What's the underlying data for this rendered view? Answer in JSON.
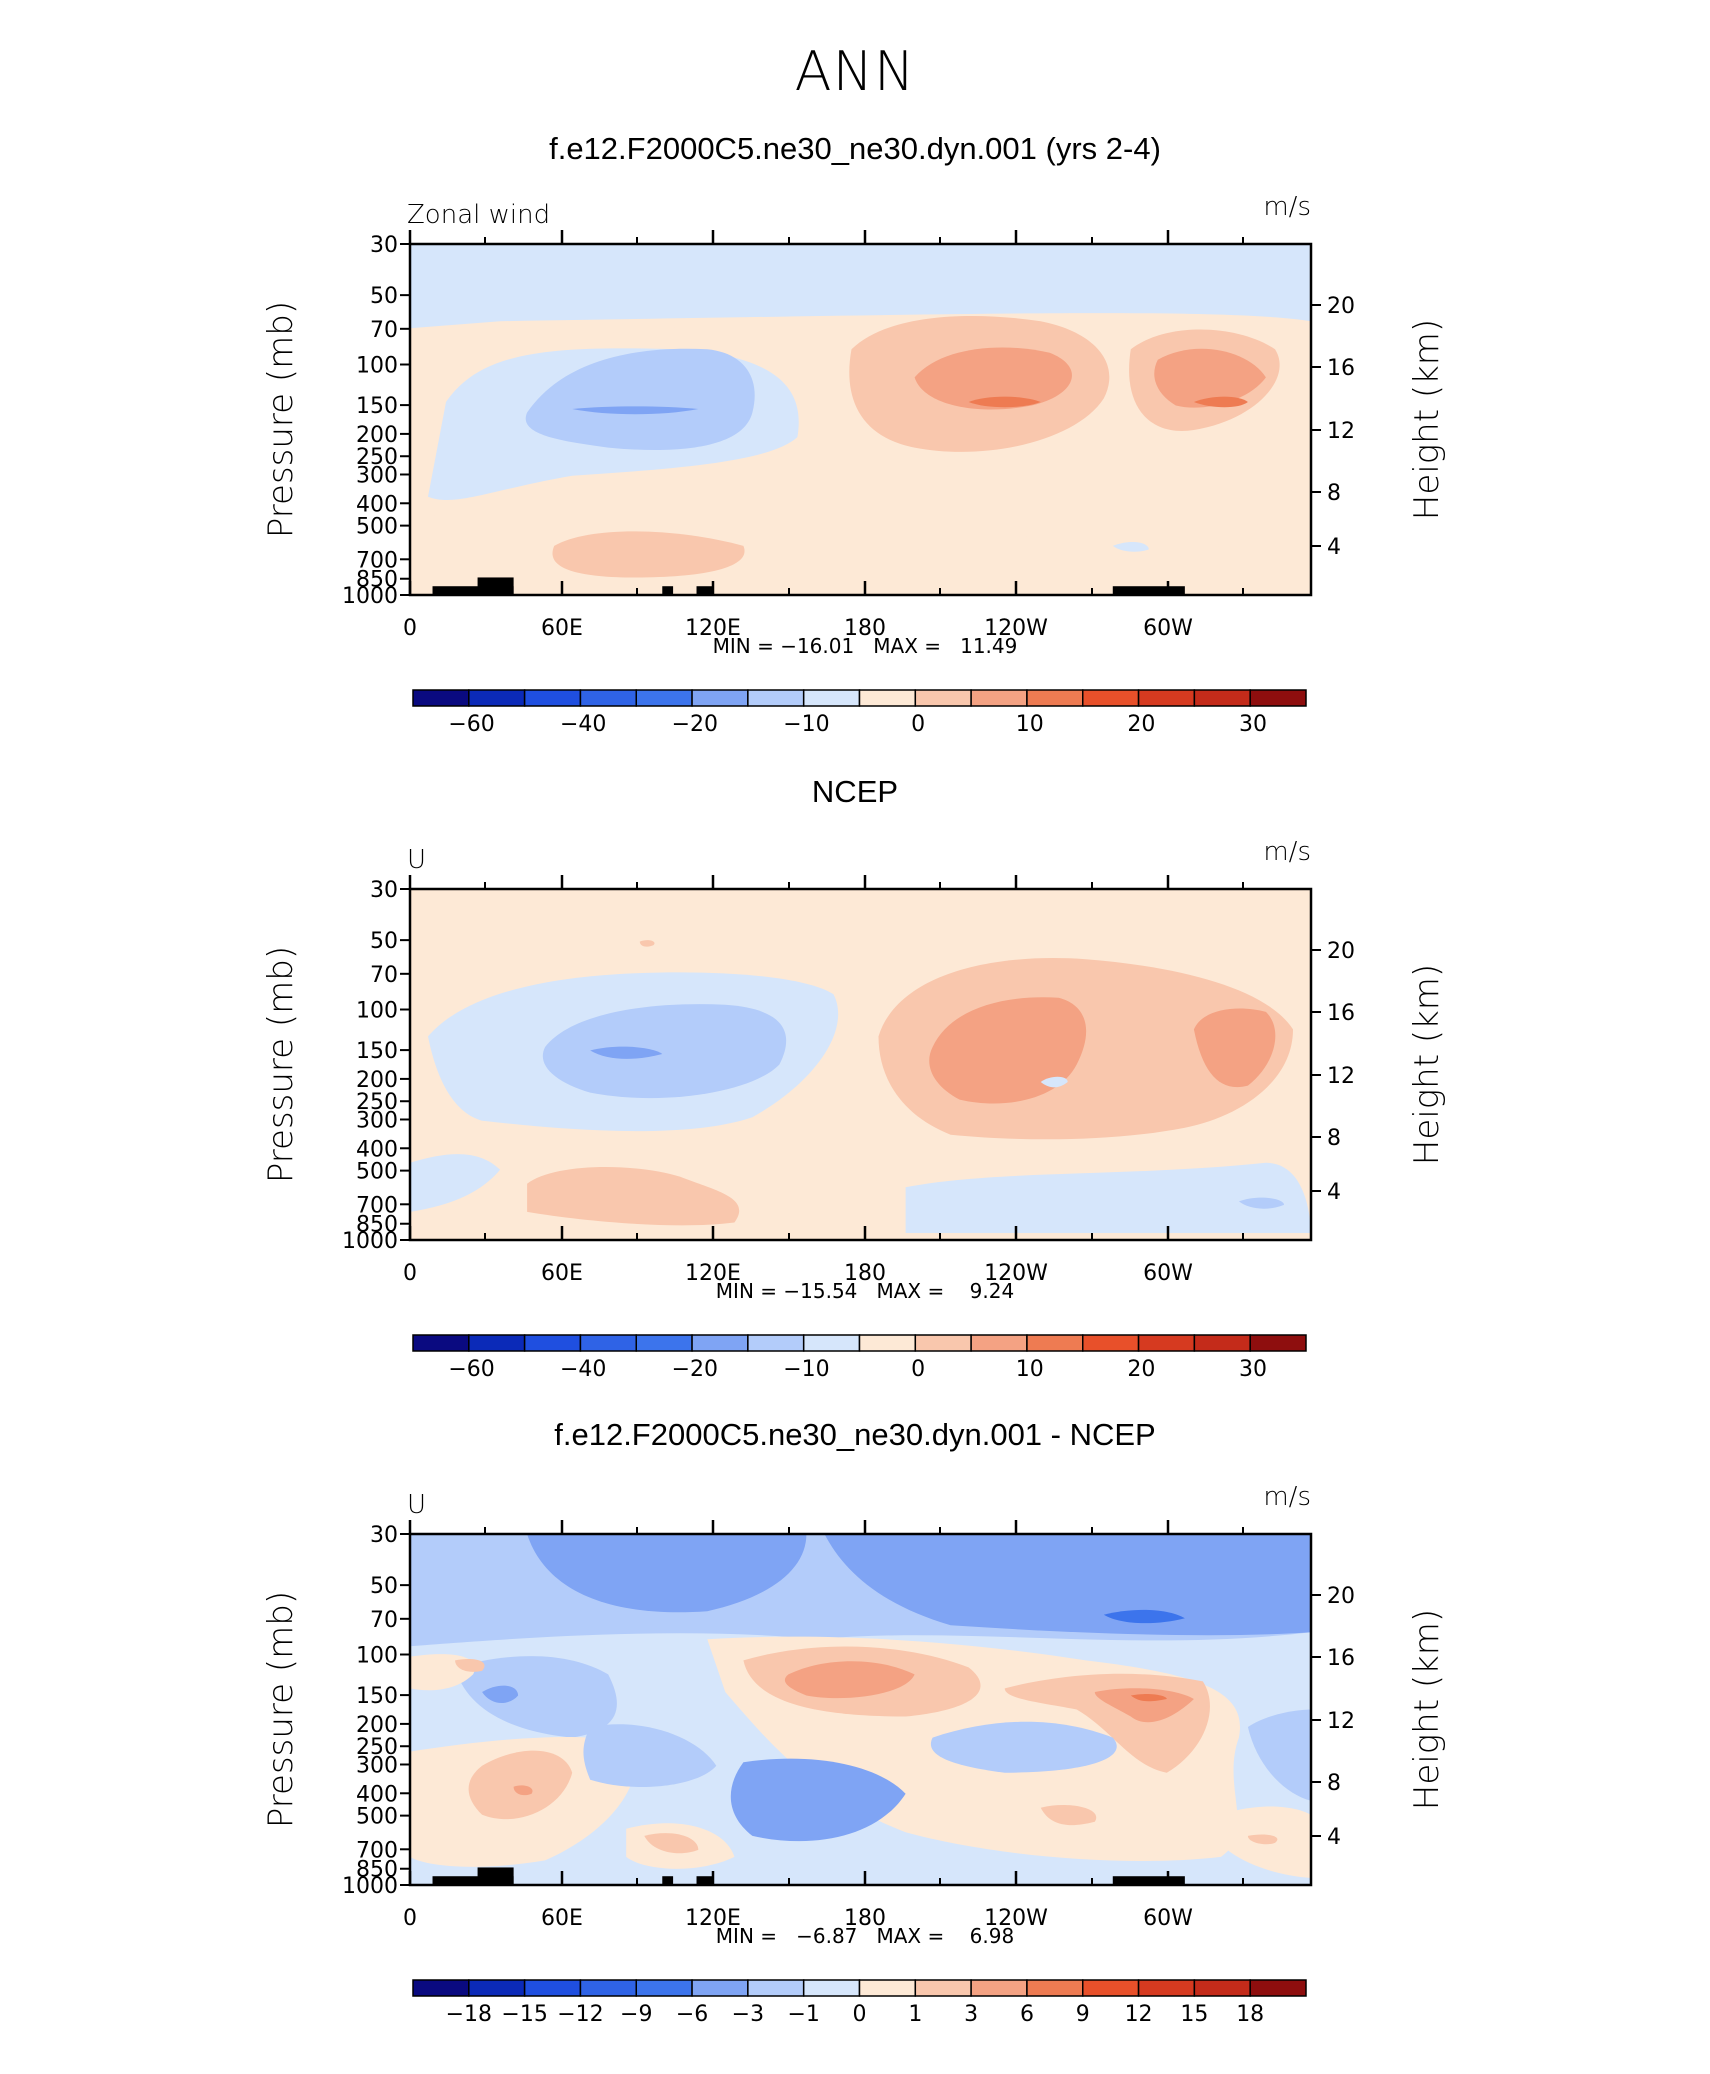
{
  "page_title": "ANN",
  "panels": [
    {
      "title": "f.e12.F2000C5.ne30_ne30.dyn.001 (yrs 2-4)",
      "left_label": "Zonal wind",
      "units": "m/s",
      "min_max": "MIN = −16.01   MAX =   11.49",
      "colorbar_labels": [
        "−60",
        "−40",
        "−20",
        "−10",
        "0",
        "10",
        "20",
        "30"
      ]
    },
    {
      "title": "NCEP",
      "left_label": "U",
      "units": "m/s",
      "min_max": "MIN = −15.54   MAX =    9.24",
      "colorbar_labels": [
        "−60",
        "−40",
        "−20",
        "−10",
        "0",
        "10",
        "20",
        "30"
      ]
    },
    {
      "title": "f.e12.F2000C5.ne30_ne30.dyn.001 - NCEP",
      "left_label": "U",
      "units": "m/s",
      "min_max": "MIN =   −6.87   MAX =    6.98",
      "colorbar_labels": [
        "−18",
        "−15",
        "−12",
        "−9",
        "−6",
        "−3",
        "−1",
        "0",
        "1",
        "3",
        "6",
        "9",
        "12",
        "15",
        "18"
      ]
    }
  ],
  "axes": {
    "y_left_label": "Pressure  (mb)",
    "y_right_label": "Height  (km)",
    "pressure_ticks": [
      "30",
      "50",
      "70",
      "100",
      "150",
      "200",
      "250",
      "300",
      "400",
      "500",
      "700",
      "850",
      "1000"
    ],
    "height_ticks": [
      "20",
      "16",
      "12",
      "8",
      "4"
    ],
    "lon_ticks": [
      "0",
      "60E",
      "120E",
      "180",
      "120W",
      "60W"
    ]
  },
  "colors": {
    "palette": [
      "#0a0a80",
      "#0b2ab8",
      "#1f4fe0",
      "#3c74ec",
      "#7fa4f4",
      "#b3ccfa",
      "#d6e6fb",
      "#fde9d6",
      "#f9c7ad",
      "#f4a283",
      "#ee7b52",
      "#e8502a",
      "#c42b1a",
      "#8e0e0e"
    ]
  },
  "chart_data": [
    {
      "type": "heatmap",
      "title": "f.e12.F2000C5.ne30_ne30.dyn.001 (yrs 2-4)",
      "field": "Zonal wind",
      "units": "m/s",
      "x_axis": "longitude",
      "x_ticks": [
        "0",
        "60E",
        "120E",
        "180",
        "120W",
        "60W"
      ],
      "y_axis": "Pressure (mb)",
      "ylim": [
        1000,
        30
      ],
      "y_scale": "log",
      "min": -16.01,
      "max": 11.49,
      "contour_levels": [
        -60,
        -50,
        -40,
        -30,
        -20,
        -15,
        -10,
        -5,
        0,
        5,
        10,
        15,
        20,
        25,
        30
      ],
      "features": [
        {
          "region": "easterly core near 90E–120E, 150 mb",
          "value_range": [
            -15,
            -10
          ]
        },
        {
          "region": "westerly core near 110W, 150 mb",
          "value_range": [
            10,
            15
          ]
        },
        {
          "region": "westerly core near 30W, 150 mb",
          "value_range": [
            10,
            15
          ]
        }
      ]
    },
    {
      "type": "heatmap",
      "title": "NCEP",
      "field": "U",
      "units": "m/s",
      "x_axis": "longitude",
      "x_ticks": [
        "0",
        "60E",
        "120E",
        "180",
        "120W",
        "60W"
      ],
      "y_axis": "Pressure (mb)",
      "ylim": [
        1000,
        30
      ],
      "y_scale": "log",
      "min": -15.54,
      "max": 9.24,
      "contour_levels": [
        -60,
        -50,
        -40,
        -30,
        -20,
        -15,
        -10,
        -5,
        0,
        5,
        10,
        15,
        20,
        25,
        30
      ]
    },
    {
      "type": "heatmap",
      "title": "f.e12.F2000C5.ne30_ne30.dyn.001 - NCEP",
      "field": "U",
      "units": "m/s",
      "x_axis": "longitude",
      "x_ticks": [
        "0",
        "60E",
        "120E",
        "180",
        "120W",
        "60W"
      ],
      "y_axis": "Pressure (mb)",
      "ylim": [
        1000,
        30
      ],
      "y_scale": "log",
      "min": -6.87,
      "max": 6.98,
      "contour_levels": [
        -18,
        -15,
        -12,
        -9,
        -6,
        -3,
        -1,
        0,
        1,
        3,
        6,
        9,
        12,
        15,
        18
      ]
    }
  ]
}
